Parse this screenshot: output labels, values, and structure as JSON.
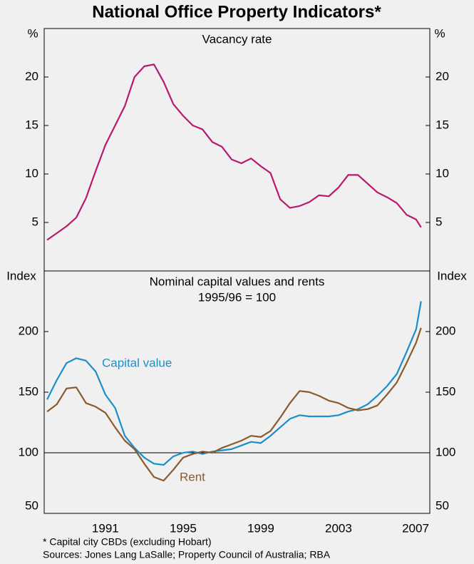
{
  "title": "National Office Property Indicators*",
  "footnote": "*    Capital city CBDs (excluding Hobart)",
  "sources": "Sources: Jones Lang LaSalle; Property Council of Australia; RBA",
  "chart_data": [
    {
      "type": "line",
      "title": "Vacancy rate",
      "y_unit": "%",
      "x": [
        1988.0,
        1988.5,
        1989.0,
        1989.5,
        1990.0,
        1990.5,
        1991.0,
        1991.5,
        1992.0,
        1992.5,
        1993.0,
        1993.5,
        1994.0,
        1994.5,
        1995.0,
        1995.5,
        1996.0,
        1996.5,
        1997.0,
        1997.5,
        1998.0,
        1998.5,
        1999.0,
        1999.5,
        2000.0,
        2000.5,
        2001.0,
        2001.5,
        2002.0,
        2002.5,
        2003.0,
        2003.5,
        2004.0,
        2004.5,
        2005.0,
        2005.5,
        2006.0,
        2006.5,
        2007.0,
        2007.25
      ],
      "xlim": [
        1987.85,
        2007.7
      ],
      "ylim": [
        0,
        25
      ],
      "yticks": [
        5,
        10,
        15,
        20
      ],
      "series": [
        {
          "color": "#b8196f",
          "values": [
            3.2,
            3.9,
            4.6,
            5.5,
            7.5,
            10.3,
            13.0,
            15.0,
            17.0,
            20.0,
            21.1,
            21.3,
            19.5,
            17.2,
            16.0,
            15.0,
            14.6,
            13.3,
            12.8,
            11.5,
            11.1,
            11.6,
            10.8,
            10.1,
            7.4,
            6.5,
            6.7,
            7.1,
            7.8,
            7.7,
            8.6,
            9.9,
            9.9,
            9.0,
            8.1,
            7.6,
            7.0,
            5.8,
            5.3,
            4.5
          ]
        }
      ]
    },
    {
      "type": "line",
      "title": "Nominal capital values and rents",
      "subtitle": "1995/96 = 100",
      "y_unit": "Index",
      "x": [
        1988.0,
        1988.5,
        1989.0,
        1989.5,
        1990.0,
        1990.5,
        1991.0,
        1991.5,
        1992.0,
        1992.5,
        1993.0,
        1993.5,
        1994.0,
        1994.5,
        1995.0,
        1995.5,
        1996.0,
        1996.5,
        1997.0,
        1997.5,
        1998.0,
        1998.5,
        1999.0,
        1999.5,
        2000.0,
        2000.5,
        2001.0,
        2001.5,
        2002.0,
        2002.5,
        2003.0,
        2003.5,
        2004.0,
        2004.5,
        2005.0,
        2005.5,
        2006.0,
        2006.5,
        2007.0,
        2007.25
      ],
      "xlim": [
        1987.85,
        2007.7
      ],
      "xticks": [
        1991,
        1995,
        1999,
        2003,
        2007
      ],
      "ylim": [
        50,
        250
      ],
      "yticks": [
        50,
        100,
        150,
        200
      ],
      "reference_line": 100,
      "series": [
        {
          "name": "Capital value",
          "color": "#1b8fc9",
          "values": [
            144,
            160,
            174,
            178,
            176,
            167,
            148,
            137,
            114,
            104,
            96,
            91,
            90,
            97,
            100,
            101,
            99,
            101,
            102,
            103,
            106,
            109,
            108,
            114,
            121,
            128,
            131,
            130,
            130,
            130,
            131,
            134,
            136,
            140,
            147,
            155,
            165,
            183,
            202,
            225
          ]
        },
        {
          "name": "Rent",
          "color": "#8c5a2c",
          "values": [
            134,
            140,
            153,
            154,
            141,
            138,
            133,
            121,
            110,
            103,
            91,
            80,
            77,
            86,
            96,
            99,
            101,
            100,
            104,
            107,
            110,
            114,
            113,
            118,
            129,
            141,
            151,
            150,
            147,
            143,
            141,
            137,
            135,
            136,
            139,
            148,
            158,
            174,
            191,
            203
          ]
        }
      ]
    }
  ]
}
